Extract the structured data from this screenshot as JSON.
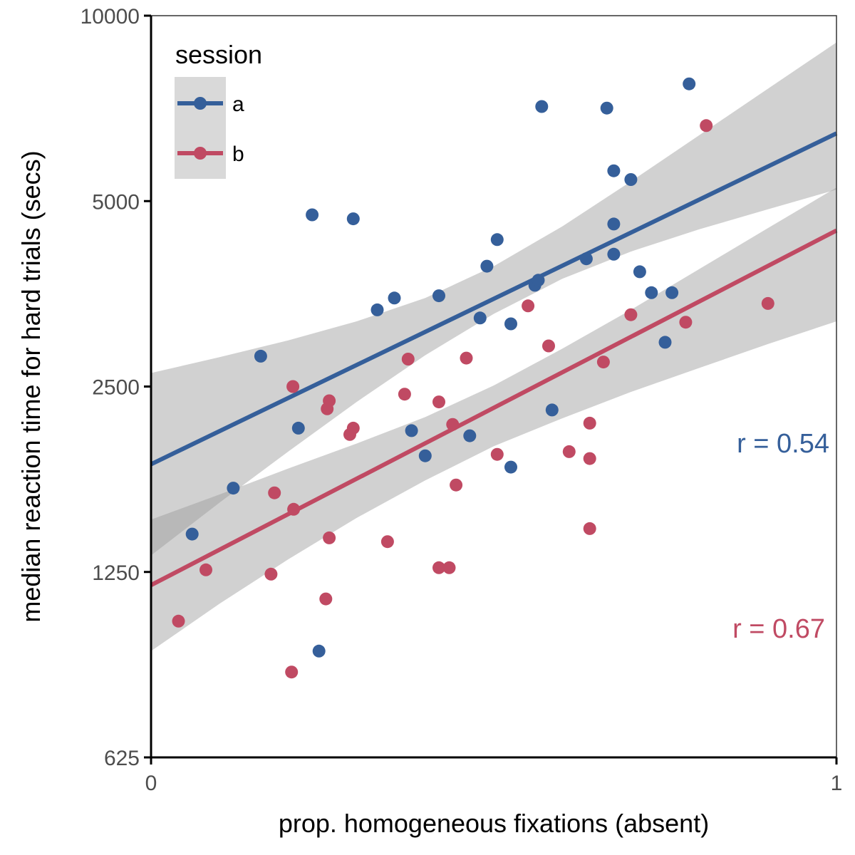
{
  "chart_data": {
    "type": "scatter",
    "title": "",
    "xlabel": "prop. homogeneous fixations (absent)",
    "ylabel": "median reaction time for hard trials (secs)",
    "xlim": [
      0,
      1
    ],
    "ylim": [
      625,
      10000
    ],
    "y_scale": "log2",
    "x_ticks": [
      0,
      1
    ],
    "x_tick_labels": [
      "0",
      "1"
    ],
    "y_ticks": [
      625,
      1250,
      2500,
      5000,
      10000
    ],
    "y_tick_labels": [
      "625",
      "1250",
      "2500",
      "5000",
      "10000"
    ],
    "grid": false,
    "legend": {
      "title": "session",
      "position": "top-left",
      "entries": [
        {
          "label": "a",
          "color": "#355f9a"
        },
        {
          "label": "b",
          "color": "#c04a63"
        }
      ]
    },
    "series": [
      {
        "name": "a",
        "color": "#355f9a",
        "points": [
          [
            0.06,
            1440
          ],
          [
            0.12,
            1710
          ],
          [
            0.16,
            2800
          ],
          [
            0.215,
            2140
          ],
          [
            0.235,
            4750
          ],
          [
            0.245,
            930
          ],
          [
            0.295,
            4680
          ],
          [
            0.33,
            3330
          ],
          [
            0.355,
            3480
          ],
          [
            0.38,
            2120
          ],
          [
            0.4,
            1930
          ],
          [
            0.42,
            3510
          ],
          [
            0.465,
            2080
          ],
          [
            0.48,
            3230
          ],
          [
            0.49,
            3920
          ],
          [
            0.505,
            4330
          ],
          [
            0.525,
            3160
          ],
          [
            0.525,
            1850
          ],
          [
            0.56,
            3650
          ],
          [
            0.565,
            3720
          ],
          [
            0.57,
            7120
          ],
          [
            0.585,
            2290
          ],
          [
            0.635,
            4030
          ],
          [
            0.665,
            7080
          ],
          [
            0.675,
            5600
          ],
          [
            0.675,
            4590
          ],
          [
            0.675,
            4100
          ],
          [
            0.7,
            5420
          ],
          [
            0.713,
            3840
          ],
          [
            0.73,
            3550
          ],
          [
            0.75,
            2950
          ],
          [
            0.76,
            3550
          ],
          [
            0.785,
            7750
          ]
        ],
        "fit": {
          "x": [
            0,
            1
          ],
          "y": [
            1870,
            6440
          ]
        },
        "band": {
          "x": [
            0,
            0.1,
            0.2,
            0.3,
            0.4,
            0.5,
            0.6,
            0.7,
            0.8,
            0.9,
            1
          ],
          "lower": [
            1330,
            1620,
            1960,
            2360,
            2810,
            3280,
            3740,
            4140,
            4500,
            4850,
            5220
          ],
          "upper": [
            2630,
            2790,
            2970,
            3190,
            3480,
            3920,
            4550,
            5380,
            6400,
            7610,
            9050
          ]
        },
        "r_label": "r =  0.54"
      },
      {
        "name": "b",
        "color": "#c04a63",
        "points": [
          [
            0.04,
            1040
          ],
          [
            0.08,
            1260
          ],
          [
            0.175,
            1240
          ],
          [
            0.18,
            1680
          ],
          [
            0.205,
            860
          ],
          [
            0.207,
            2500
          ],
          [
            0.208,
            1580
          ],
          [
            0.255,
            1130
          ],
          [
            0.257,
            2300
          ],
          [
            0.26,
            2370
          ],
          [
            0.26,
            1420
          ],
          [
            0.29,
            2090
          ],
          [
            0.295,
            2140
          ],
          [
            0.345,
            1400
          ],
          [
            0.37,
            2430
          ],
          [
            0.375,
            2770
          ],
          [
            0.42,
            1270
          ],
          [
            0.42,
            2360
          ],
          [
            0.435,
            1270
          ],
          [
            0.44,
            2170
          ],
          [
            0.445,
            1730
          ],
          [
            0.46,
            2780
          ],
          [
            0.505,
            1940
          ],
          [
            0.55,
            3380
          ],
          [
            0.58,
            2910
          ],
          [
            0.61,
            1960
          ],
          [
            0.64,
            2180
          ],
          [
            0.64,
            1470
          ],
          [
            0.64,
            1910
          ],
          [
            0.66,
            2740
          ],
          [
            0.7,
            3270
          ],
          [
            0.78,
            3180
          ],
          [
            0.81,
            6630
          ],
          [
            0.9,
            3410
          ]
        ],
        "fit": {
          "x": [
            0,
            1
          ],
          "y": [
            1190,
            4480
          ]
        },
        "band": {
          "x": [
            0,
            0.1,
            0.2,
            0.3,
            0.4,
            0.5,
            0.6,
            0.7,
            0.8,
            0.9,
            1
          ],
          "lower": [
            930,
            1110,
            1310,
            1530,
            1760,
            2000,
            2220,
            2450,
            2680,
            2930,
            3190
          ],
          "upper": [
            1520,
            1670,
            1840,
            2020,
            2230,
            2510,
            2880,
            3330,
            3880,
            4520,
            5260
          ]
        },
        "r_label": "r = 0.67"
      }
    ]
  }
}
